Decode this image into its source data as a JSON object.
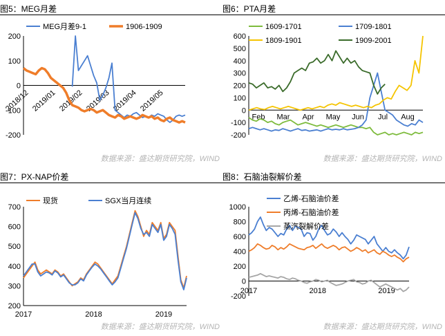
{
  "watermark": "数据来源：盛达期货研究院，WIND",
  "colors": {
    "blue": "#4a7fd1",
    "orange": "#ef7d2a",
    "green_light": "#7dbb3c",
    "green_dark": "#3a6b2a",
    "yellow": "#f5c400",
    "gray": "#a6a6a6"
  },
  "panels": [
    {
      "title": "图5：MEG月差"
    },
    {
      "title": "图6：PTA月差"
    },
    {
      "title": "图7：PX-NAP价差"
    },
    {
      "title": "图8：石脑油裂解价差"
    }
  ],
  "chart_data": [
    {
      "type": "line",
      "ylim": [
        -200,
        200
      ],
      "yticks": [
        "200",
        "100",
        "0",
        "-100",
        "-200"
      ],
      "xticklabels": [
        "2018/12",
        "2019/01",
        "2019/02",
        "2019/03",
        "2019/04",
        "2019/05"
      ],
      "series": [
        {
          "name": "MEG月差9-1",
          "color": "#4a7fd1",
          "values": [
            null,
            null,
            null,
            null,
            null,
            null,
            null,
            null,
            null,
            null,
            null,
            null,
            null,
            null,
            null,
            null,
            -5,
            200,
            60,
            80,
            100,
            120,
            80,
            40,
            10,
            -60,
            -40,
            -10,
            30,
            90,
            -100,
            -110,
            -120,
            -130,
            -120,
            -125,
            -115,
            -110,
            -120,
            -130,
            -125,
            -130,
            -120,
            -125,
            -115,
            -120,
            -125,
            -140,
            -150,
            -140,
            -125,
            -120,
            -125,
            -120
          ]
        },
        {
          "name": "1906-1909",
          "color": "#ef7d2a",
          "values": [
            70,
            60,
            55,
            50,
            45,
            60,
            70,
            65,
            50,
            30,
            20,
            10,
            0,
            -10,
            -30,
            -60,
            -80,
            -85,
            -90,
            -100,
            -105,
            -100,
            -95,
            -100,
            -110,
            -105,
            -100,
            -110,
            -120,
            -125,
            -130,
            -120,
            -125,
            -135,
            -130,
            -125,
            -130,
            -135,
            -130,
            -120,
            -125,
            -130,
            -125,
            -135,
            -130,
            -140,
            -145,
            -135,
            -130,
            -140,
            -145,
            -150,
            -145,
            -150
          ]
        }
      ]
    },
    {
      "type": "line",
      "ylim": [
        -200,
        600
      ],
      "yticks": [
        "600",
        "500",
        "400",
        "300",
        "200",
        "100",
        "0",
        "-100",
        "-200"
      ],
      "xticklabels": [
        "Feb",
        "Mar",
        "Apr",
        "May",
        "Jun",
        "Jul",
        "Aug"
      ],
      "series": [
        {
          "name": "1609-1701",
          "color": "#7dbb3c",
          "values": [
            -60,
            -80,
            -90,
            -70,
            -80,
            -100,
            -90,
            -110,
            -120,
            -100,
            -90,
            -80,
            -100,
            -120,
            -110,
            -100,
            -110,
            -120,
            -130,
            -120,
            -130,
            -140,
            -130,
            -120,
            -130,
            -140,
            -130,
            -120,
            -130,
            -140,
            -140,
            -150,
            -140,
            -180,
            -200,
            -190,
            -180,
            -200,
            -190,
            -200,
            -190,
            -180,
            -190,
            -200,
            -180,
            -190,
            -180
          ]
        },
        {
          "name": "1709-1801",
          "color": "#4a7fd1",
          "values": [
            -150,
            -140,
            -150,
            -160,
            -150,
            -160,
            -170,
            -160,
            -165,
            -150,
            -160,
            -170,
            -160,
            -150,
            -165,
            -160,
            -170,
            -165,
            -160,
            -170,
            -160,
            -150,
            -160,
            -155,
            -160,
            -150,
            -160,
            -155,
            -150,
            -140,
            -120,
            -80,
            100,
            200,
            300,
            150,
            0,
            -20,
            -40,
            -80,
            -100,
            -120,
            -130,
            -110,
            -120,
            -80,
            -100
          ]
        },
        {
          "name": "1809-1901",
          "color": "#f5c400",
          "values": [
            0,
            10,
            20,
            10,
            5,
            20,
            30,
            20,
            10,
            20,
            30,
            20,
            10,
            0,
            10,
            20,
            10,
            20,
            30,
            20,
            40,
            50,
            40,
            60,
            50,
            40,
            30,
            40,
            30,
            20,
            30,
            20,
            40,
            50,
            80,
            100,
            90,
            150,
            200,
            180,
            160,
            200,
            400,
            300,
            600
          ]
        },
        {
          "name": "1909-2001",
          "color": "#3a6b2a",
          "values": [
            [
              0,
              220
            ],
            [
              1,
              210
            ],
            [
              2,
              180
            ],
            [
              3,
              200
            ],
            [
              4,
              220
            ],
            [
              5,
              180
            ],
            [
              6,
              190
            ],
            [
              7,
              170
            ],
            [
              8,
              200
            ],
            [
              9,
              150
            ],
            [
              10,
              180
            ],
            [
              11,
              230
            ],
            [
              12,
              300
            ],
            [
              13,
              320
            ],
            [
              14,
              340
            ],
            [
              15,
              320
            ],
            [
              16,
              380
            ],
            [
              17,
              390
            ],
            [
              18,
              420
            ],
            [
              19,
              380
            ],
            [
              20,
              400
            ],
            [
              21,
              450
            ],
            [
              22,
              400
            ],
            [
              23,
              480
            ],
            [
              24,
              430
            ],
            [
              25,
              380
            ],
            [
              26,
              420
            ],
            [
              27,
              380
            ],
            [
              28,
              400
            ],
            [
              29,
              350
            ],
            [
              30,
              320
            ],
            [
              31,
              310
            ],
            [
              32,
              300
            ],
            [
              33,
              200
            ],
            [
              34,
              130
            ],
            [
              35,
              180
            ],
            [
              36,
              210
            ]
          ]
        }
      ]
    },
    {
      "type": "line",
      "ylim": [
        200,
        700
      ],
      "yticks": [
        "700",
        "600",
        "500",
        "400",
        "300",
        "200"
      ],
      "xticklabels": [
        "2017",
        "2018",
        "2019"
      ],
      "series": [
        {
          "name": "现货",
          "color": "#ef7d2a",
          "values": [
            340,
            360,
            380,
            400,
            420,
            380,
            360,
            370,
            380,
            370,
            360,
            380,
            370,
            350,
            360,
            340,
            320,
            300,
            310,
            320,
            340,
            330,
            360,
            380,
            400,
            420,
            410,
            390,
            370,
            350,
            330,
            310,
            330,
            350,
            400,
            450,
            500,
            560,
            620,
            680,
            650,
            600,
            550,
            580,
            560,
            620,
            600,
            580,
            620,
            540,
            560,
            620,
            600,
            580,
            450,
            330,
            290,
            350
          ]
        },
        {
          "name": "SGX当月连续",
          "color": "#4a7fd1",
          "values": [
            350,
            370,
            390,
            410,
            410,
            370,
            350,
            360,
            370,
            365,
            355,
            375,
            365,
            345,
            355,
            335,
            315,
            305,
            305,
            315,
            335,
            325,
            355,
            375,
            395,
            410,
            400,
            385,
            365,
            345,
            325,
            305,
            320,
            340,
            390,
            440,
            490,
            550,
            610,
            670,
            640,
            590,
            560,
            570,
            550,
            610,
            590,
            570,
            610,
            530,
            550,
            610,
            590,
            560,
            430,
            320,
            280,
            340
          ]
        }
      ]
    },
    {
      "type": "line",
      "ylim": [
        -200,
        1000
      ],
      "yticks": [
        "1000",
        "800",
        "600",
        "400",
        "200",
        "0",
        "-200"
      ],
      "xticklabels": [
        "2017",
        "2018",
        "2019"
      ],
      "series": [
        {
          "name": "乙烯-石脑油价差",
          "color": "#4a7fd1",
          "values": [
            620,
            650,
            700,
            800,
            860,
            760,
            680,
            720,
            700,
            650,
            600,
            640,
            620,
            700,
            750,
            680,
            740,
            720,
            700,
            600,
            650,
            640,
            550,
            600,
            700,
            750,
            680,
            620,
            640,
            700,
            660,
            600,
            650,
            600,
            560,
            500,
            550,
            620,
            600,
            580,
            560,
            500,
            550,
            600,
            500,
            450,
            400,
            450,
            400,
            380,
            420,
            380,
            350,
            300,
            350,
            460
          ]
        },
        {
          "name": "丙烯-石脑油价差",
          "color": "#ef7d2a",
          "values": [
            400,
            420,
            450,
            500,
            480,
            450,
            430,
            440,
            480,
            460,
            420,
            450,
            430,
            460,
            500,
            480,
            460,
            440,
            430,
            420,
            450,
            460,
            480,
            440,
            470,
            500,
            460,
            440,
            460,
            480,
            460,
            420,
            450,
            460,
            430,
            400,
            420,
            450,
            430,
            400,
            420,
            380,
            400,
            420,
            380,
            360,
            400,
            380,
            350,
            330,
            350,
            320,
            300,
            260,
            300,
            320
          ]
        },
        {
          "name": "蒸汽裂解价差",
          "color": "#a6a6a6",
          "values": [
            50,
            60,
            70,
            80,
            100,
            80,
            60,
            70,
            60,
            50,
            40,
            60,
            50,
            30,
            20,
            40,
            30,
            10,
            0,
            -20,
            -30,
            -10,
            0,
            20,
            10,
            -10,
            0,
            10,
            -20,
            -40,
            -60,
            -50,
            -40,
            -20,
            0,
            10,
            20,
            -10,
            -20,
            -40,
            -30,
            0,
            10,
            -20,
            -50,
            -80,
            -60,
            -40,
            -60,
            -80,
            -100,
            -120,
            -100,
            -140,
            -120,
            -80
          ]
        }
      ]
    }
  ]
}
